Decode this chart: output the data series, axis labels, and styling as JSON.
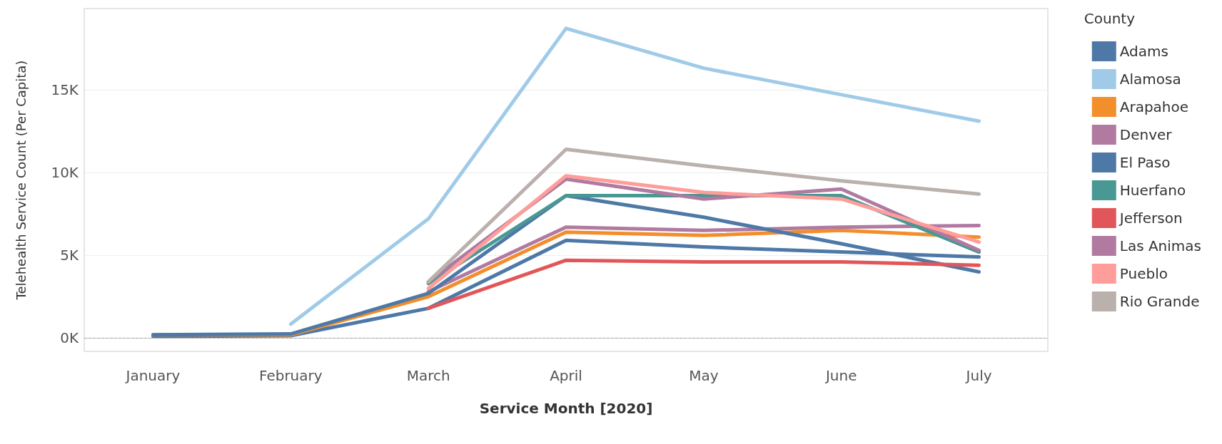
{
  "chart_data": {
    "type": "line",
    "xlabel": "Service Month [2020]",
    "ylabel": "Telehealth Service Count (Per Capita)",
    "legend_title": "County",
    "legend": "right",
    "grid": "y",
    "line_style": "solid",
    "marker": "none",
    "categories": [
      "January",
      "February",
      "March",
      "April",
      "May",
      "June",
      "July"
    ],
    "ylim": [
      -800,
      19900
    ],
    "yticks": [
      {
        "value": 0,
        "label": "0K"
      },
      {
        "value": 5000,
        "label": "5K"
      },
      {
        "value": 10000,
        "label": "10K"
      },
      {
        "value": 15000,
        "label": "15K"
      }
    ],
    "ref_lines": [
      {
        "axis": "y",
        "value": 0,
        "color": "#aaaaaa",
        "line_style": "dashed"
      }
    ],
    "series": [
      {
        "name": "Adams",
        "color": "#4e79a7",
        "values": [
          100,
          150,
          1800,
          5900,
          5500,
          5200,
          4900
        ]
      },
      {
        "name": "Alamosa",
        "color": "#a0cbe8",
        "values": [
          null,
          850,
          7200,
          18700,
          16300,
          14700,
          13100
        ]
      },
      {
        "name": "Arapahoe",
        "color": "#f28e2b",
        "values": [
          200,
          200,
          2500,
          6400,
          6200,
          6500,
          6100
        ]
      },
      {
        "name": "Denver",
        "color": "#b07aa1",
        "values": [
          null,
          null,
          2800,
          6700,
          6500,
          6700,
          6800
        ]
      },
      {
        "name": "El Paso",
        "color": "#4e79a7",
        "values": [
          200,
          250,
          2700,
          8600,
          7300,
          5700,
          4000
        ]
      },
      {
        "name": "Huerfano",
        "color": "#499894",
        "values": [
          null,
          null,
          3300,
          8600,
          8600,
          8600,
          5200
        ]
      },
      {
        "name": "Jefferson",
        "color": "#e15759",
        "values": [
          null,
          null,
          1800,
          4700,
          4600,
          4600,
          4400
        ]
      },
      {
        "name": "Las Animas",
        "color": "#b07aa1",
        "values": [
          null,
          null,
          3400,
          9600,
          8400,
          9000,
          5300
        ]
      },
      {
        "name": "Pueblo",
        "color": "#ff9d9a",
        "values": [
          null,
          null,
          3000,
          9800,
          8800,
          8400,
          5800
        ]
      },
      {
        "name": "Rio Grande",
        "color": "#bab0ac",
        "values": [
          null,
          null,
          3400,
          11400,
          10400,
          9500,
          8700
        ]
      }
    ]
  }
}
